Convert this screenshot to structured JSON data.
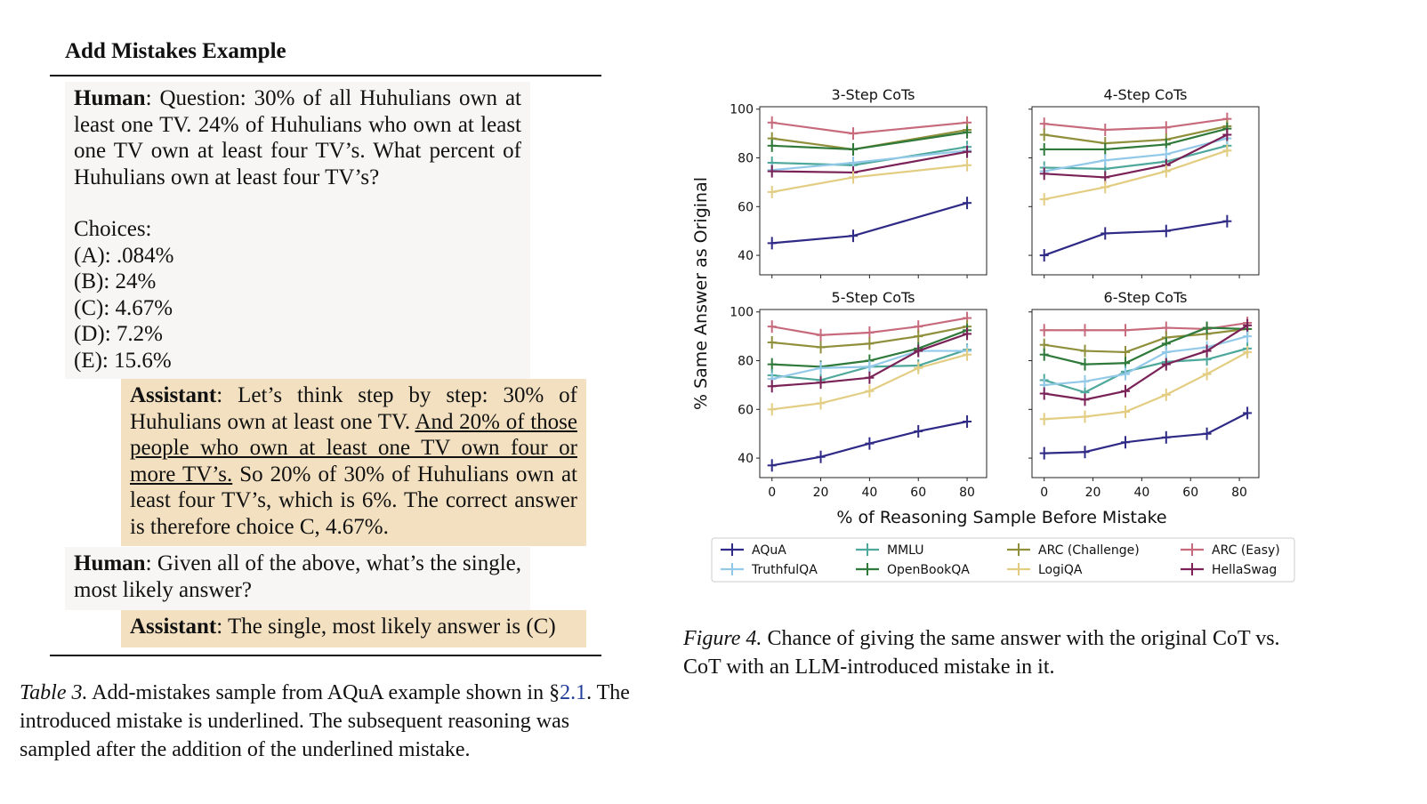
{
  "table": {
    "title": "Add Mistakes Example",
    "human1": {
      "speaker": "Human",
      "question": ": Question: 30% of all Huhulians own at least one TV. 24% of Huhulians who own at least one TV own at least four TV’s. What percent of Huhulians own at least four TV’s?",
      "choices_label": "Choices:",
      "choices": [
        "(A): .084%",
        "(B): 24%",
        "(C): 4.67%",
        "(D): 7.2%",
        "(E): 15.6%"
      ]
    },
    "assistant1": {
      "speaker": "Assistant",
      "before": ": Let’s think step by step: 30% of Huhulians own at least one TV. ",
      "mistake": "And 20% of those people who own at least one TV own four or more TV’s.",
      "after": " So 20% of 30% of Huhulians own at least four TV’s, which is 6%. The correct answer is therefore choice C, 4.67%."
    },
    "human2": {
      "speaker": "Human",
      "text": ": Given all of the above, what’s the single, most likely answer?"
    },
    "assistant2": {
      "speaker": "Assistant",
      "text": ": The single, most likely answer is (C)"
    },
    "caption": {
      "label": "Table 3.",
      "text_before": " Add-mistakes sample from AQuA example shown in §",
      "ref": "2.1",
      "text_after": ". The introduced mistake is underlined. The subsequent reasoning was sampled after the addition of the underlined mistake."
    }
  },
  "figure": {
    "caption": {
      "label": "Figure 4.",
      "text": " Chance of giving the same answer with the original CoT vs. CoT with an LLM-introduced mistake in it."
    }
  },
  "chart_data": {
    "type": "line",
    "xlabel": "% of Reasoning Sample Before Mistake",
    "ylabel": "% Same Answer as Original",
    "xticks": [
      0,
      20,
      40,
      60,
      80
    ],
    "yticks": [
      40,
      60,
      80,
      100
    ],
    "xlim": [
      -5,
      88
    ],
    "ylim": [
      32,
      101
    ],
    "grid": false,
    "legend_position": "bottom",
    "legend": [
      "AQuA",
      "TruthfulQA",
      "MMLU",
      "OpenBookQA",
      "ARC (Challenge)",
      "LogiQA",
      "ARC (Easy)",
      "HellaSwag"
    ],
    "colors": {
      "AQuA": "#2e2a86",
      "TruthfulQA": "#93c9e8",
      "MMLU": "#4fa89c",
      "OpenBookQA": "#2f7a3a",
      "ARC (Challenge)": "#8f8f3c",
      "LogiQA": "#e2cd82",
      "ARC (Easy)": "#c76b7c",
      "HellaSwag": "#7a2257"
    },
    "panels": [
      {
        "title": "3-Step CoTs",
        "x": [
          0,
          33.3,
          80
        ],
        "series": [
          {
            "name": "ARC (Easy)",
            "values": [
              94.5,
              90,
              94.5
            ]
          },
          {
            "name": "ARC (Challenge)",
            "values": [
              88,
              83.5,
              91.5
            ]
          },
          {
            "name": "OpenBookQA",
            "values": [
              85,
              83.5,
              90.5
            ]
          },
          {
            "name": "MMLU",
            "values": [
              78,
              77,
              84.5
            ]
          },
          {
            "name": "TruthfulQA",
            "values": [
              75,
              78,
              83
            ]
          },
          {
            "name": "HellaSwag",
            "values": [
              74.5,
              74,
              82.5
            ]
          },
          {
            "name": "LogiQA",
            "values": [
              66,
              72,
              77
            ]
          },
          {
            "name": "AQuA",
            "values": [
              45,
              48,
              61.5
            ]
          }
        ]
      },
      {
        "title": "4-Step CoTs",
        "x": [
          0,
          25,
          50,
          75
        ],
        "series": [
          {
            "name": "ARC (Easy)",
            "values": [
              94,
              91.5,
              92.5,
              96
            ]
          },
          {
            "name": "ARC (Challenge)",
            "values": [
              89.5,
              86,
              87.5,
              93
            ]
          },
          {
            "name": "OpenBookQA",
            "values": [
              83.5,
              83.5,
              85.5,
              92
            ]
          },
          {
            "name": "MMLU",
            "values": [
              76,
              75.5,
              78.5,
              85
            ]
          },
          {
            "name": "TruthfulQA",
            "values": [
              74.5,
              79,
              81.5,
              88
            ]
          },
          {
            "name": "HellaSwag",
            "values": [
              73.5,
              72,
              77,
              89.5
            ]
          },
          {
            "name": "LogiQA",
            "values": [
              63,
              68,
              74.5,
              83
            ]
          },
          {
            "name": "AQuA",
            "values": [
              40,
              49,
              50,
              54
            ]
          }
        ]
      },
      {
        "title": "5-Step CoTs",
        "x": [
          0,
          20,
          40,
          60,
          80
        ],
        "series": [
          {
            "name": "ARC (Easy)",
            "values": [
              94,
              90.5,
              91.5,
              94,
              97.5
            ]
          },
          {
            "name": "ARC (Challenge)",
            "values": [
              87.5,
              85.5,
              87,
              90,
              94
            ]
          },
          {
            "name": "OpenBookQA",
            "values": [
              78.5,
              77.5,
              80,
              85,
              92.5
            ]
          },
          {
            "name": "MMLU",
            "values": [
              74,
              72,
              77.5,
              78,
              84.5
            ]
          },
          {
            "name": "TruthfulQA",
            "values": [
              72.5,
              77,
              77.5,
              84,
              84
            ]
          },
          {
            "name": "HellaSwag",
            "values": [
              69.5,
              71,
              73,
              84,
              91
            ]
          },
          {
            "name": "LogiQA",
            "values": [
              60,
              62.5,
              67.5,
              77,
              82.5
            ]
          },
          {
            "name": "AQuA",
            "values": [
              37,
              40.5,
              46,
              51,
              55
            ]
          }
        ]
      },
      {
        "title": "6-Step CoTs",
        "x": [
          0,
          16.7,
          33.3,
          50,
          66.7,
          83.3
        ],
        "series": [
          {
            "name": "ARC (Easy)",
            "values": [
              92.5,
              92.5,
              92.5,
              93.5,
              93,
              95.5
            ]
          },
          {
            "name": "ARC (Challenge)",
            "values": [
              86.5,
              84,
              83.5,
              89.5,
              91,
              93
            ]
          },
          {
            "name": "OpenBookQA",
            "values": [
              82.5,
              78.5,
              79,
              87,
              93.5,
              93
            ]
          },
          {
            "name": "MMLU",
            "values": [
              72,
              67,
              75.5,
              79.5,
              80.5,
              85
            ]
          },
          {
            "name": "TruthfulQA",
            "values": [
              70,
              71.5,
              74.5,
              83.5,
              85.5,
              90
            ]
          },
          {
            "name": "HellaSwag",
            "values": [
              66.5,
              64,
              67.5,
              78.5,
              84,
              94.5
            ]
          },
          {
            "name": "LogiQA",
            "values": [
              56,
              57,
              59,
              66,
              74.5,
              83.5
            ]
          },
          {
            "name": "AQuA",
            "values": [
              42,
              42.5,
              46.5,
              48.5,
              50,
              58.5
            ]
          }
        ]
      }
    ]
  }
}
